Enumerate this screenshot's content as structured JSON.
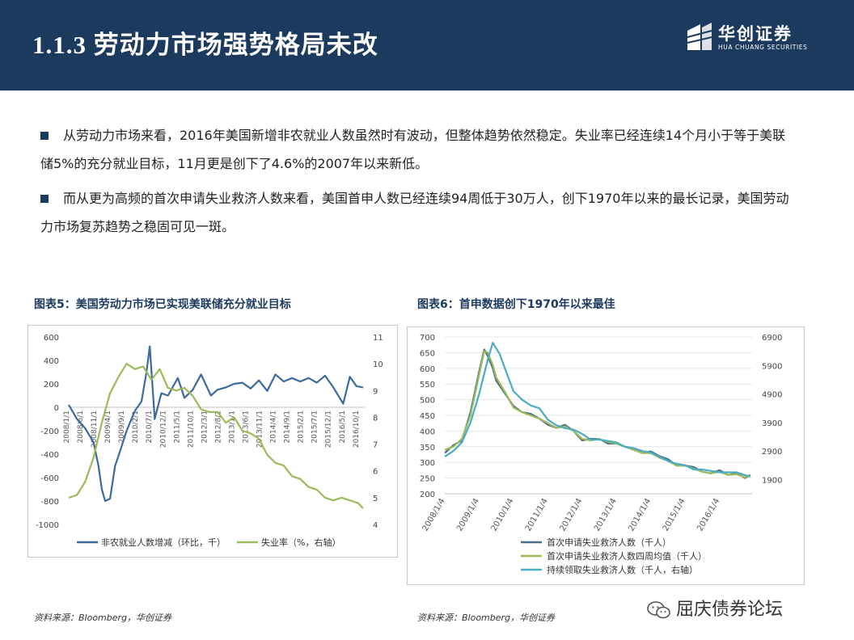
{
  "header": {
    "title": "1.1.3 劳动力市场强势格局未改",
    "logo_cn": "华创证券",
    "logo_en": "HUA CHUANG SECURITIES",
    "bg_color": "#1c3a5e"
  },
  "bullets": [
    "从劳动力市场来看，2016年美国新增非农就业人数虽然时有波动，但整体趋势依然稳定。失业率已经连续14个月小于等于美联储5%的充分就业目标，11月更是创下了4.6%的2007年以来新低。",
    "而从更为高频的首次申请失业救济人数来看，美国首申人数已经连续94周低于30万人，创下1970年以来的最长记录，美国劳动力市场复苏趋势之稳固可见一斑。"
  ],
  "chart_data": [
    {
      "type": "line",
      "title": "图表5：美国劳动力市场已实现美联储充分就业目标",
      "x_tick_labels": [
        "2008/1/1",
        "2008/11/1",
        "2009/9/1",
        "2010/7/1",
        "2011/5/1",
        "2012/3/1",
        "2013/1/1",
        "2013/11/1",
        "2014/9/1",
        "2015/7/1",
        "2016/5/1"
      ],
      "x_tick_labels_extra": [
        "2008/6/1",
        "2009/4/1",
        "2010/2/1",
        "2010/12/1",
        "2011/10/1",
        "2012/8/1",
        "2013/6/1",
        "2014/4/1",
        "2015/2/1",
        "2015/12/1",
        "2016/10/1"
      ],
      "y_left": {
        "ticks": [
          600,
          400,
          200,
          0,
          -200,
          -400,
          -600,
          -800,
          -1000
        ],
        "range": [
          -1000,
          600
        ]
      },
      "y_right": {
        "ticks": [
          11,
          10,
          9,
          8,
          7,
          6,
          5,
          4
        ],
        "range": [
          4,
          11
        ]
      },
      "series": [
        {
          "name": "非农就业人数增减（环比，千）",
          "axis": "left",
          "color": "#3d6a9e",
          "x_year": [
            2008.0,
            2008.25,
            2008.5,
            2008.75,
            2008.9,
            2009.0,
            2009.1,
            2009.25,
            2009.4,
            2009.5,
            2009.75,
            2010.0,
            2010.2,
            2010.35,
            2010.45,
            2010.6,
            2010.8,
            2011.0,
            2011.3,
            2011.5,
            2011.75,
            2012.0,
            2012.3,
            2012.5,
            2012.75,
            2013.0,
            2013.25,
            2013.5,
            2013.75,
            2014.0,
            2014.25,
            2014.5,
            2014.75,
            2015.0,
            2015.25,
            2015.5,
            2015.75,
            2016.0,
            2016.3,
            2016.5,
            2016.7,
            2016.9
          ],
          "values": [
            20,
            -100,
            -180,
            -300,
            -500,
            -700,
            -800,
            -780,
            -500,
            -420,
            -200,
            -30,
            50,
            300,
            520,
            -100,
            120,
            100,
            250,
            80,
            150,
            280,
            100,
            150,
            170,
            200,
            210,
            160,
            230,
            140,
            280,
            220,
            250,
            220,
            250,
            210,
            270,
            170,
            30,
            260,
            180,
            170
          ]
        },
        {
          "name": "失业率（%，右轴）",
          "axis": "right",
          "color": "#9bbb59",
          "x_year": [
            2008.0,
            2008.25,
            2008.5,
            2008.75,
            2009.0,
            2009.25,
            2009.5,
            2009.75,
            2010.0,
            2010.25,
            2010.5,
            2010.75,
            2011.0,
            2011.25,
            2011.5,
            2011.75,
            2012.0,
            2012.25,
            2012.5,
            2012.75,
            2013.0,
            2013.25,
            2013.5,
            2013.75,
            2014.0,
            2014.25,
            2014.5,
            2014.75,
            2015.0,
            2015.25,
            2015.5,
            2015.75,
            2016.0,
            2016.25,
            2016.5,
            2016.75,
            2016.9
          ],
          "values": [
            5.0,
            5.1,
            5.6,
            6.5,
            7.8,
            8.9,
            9.5,
            10.0,
            9.8,
            9.9,
            9.4,
            9.8,
            9.1,
            9.0,
            9.1,
            8.8,
            8.3,
            8.2,
            8.2,
            7.8,
            8.0,
            7.5,
            7.4,
            7.2,
            6.6,
            6.3,
            6.2,
            5.8,
            5.7,
            5.4,
            5.3,
            5.0,
            4.9,
            5.0,
            4.9,
            4.8,
            4.6
          ]
        }
      ],
      "legend": [
        "非农就业人数增减（环比，千）",
        "失业率（%，右轴）"
      ]
    },
    {
      "type": "line",
      "title": "图表6：首申数据创下1970年以来最佳",
      "x_tick_labels": [
        "2008/1/4",
        "2009/1/4",
        "2010/1/4",
        "2011/1/4",
        "2012/1/4",
        "2013/1/4",
        "2014/1/4",
        "2015/1/4",
        "2016/1/4"
      ],
      "y_left": {
        "ticks": [
          700,
          650,
          600,
          550,
          500,
          450,
          400,
          350,
          300,
          250,
          200
        ],
        "range": [
          200,
          700
        ]
      },
      "y_right": {
        "ticks": [
          6900,
          5900,
          4900,
          3900,
          2900,
          1900
        ],
        "range": [
          1400,
          6900
        ]
      },
      "series": [
        {
          "name": "首次申请失业救济人数（千人）",
          "axis": "left",
          "color": "#4a6c8c",
          "x_year": [
            2008.0,
            2008.25,
            2008.5,
            2008.75,
            2009.0,
            2009.15,
            2009.25,
            2009.4,
            2009.5,
            2009.75,
            2010.0,
            2010.25,
            2010.5,
            2010.75,
            2011.0,
            2011.25,
            2011.5,
            2011.75,
            2012.0,
            2012.25,
            2012.5,
            2012.75,
            2013.0,
            2013.25,
            2013.5,
            2013.75,
            2014.0,
            2014.25,
            2014.5,
            2014.75,
            2015.0,
            2015.25,
            2015.5,
            2015.75,
            2016.0,
            2016.25,
            2016.5,
            2016.75,
            2016.9
          ],
          "values": [
            330,
            355,
            370,
            460,
            590,
            660,
            640,
            600,
            560,
            520,
            480,
            460,
            455,
            440,
            420,
            410,
            420,
            400,
            370,
            375,
            375,
            360,
            360,
            350,
            345,
            330,
            335,
            320,
            310,
            290,
            290,
            285,
            270,
            265,
            275,
            260,
            265,
            250,
            260
          ]
        },
        {
          "name": "首次申请失业救济人数四周均值（千人）",
          "axis": "left",
          "color": "#9bbb59",
          "x_year": [
            2008.0,
            2008.25,
            2008.5,
            2008.75,
            2009.0,
            2009.15,
            2009.25,
            2009.4,
            2009.5,
            2009.75,
            2010.0,
            2010.25,
            2010.5,
            2010.75,
            2011.0,
            2011.25,
            2011.5,
            2011.75,
            2012.0,
            2012.25,
            2012.5,
            2012.75,
            2013.0,
            2013.25,
            2013.5,
            2013.75,
            2014.0,
            2014.25,
            2014.5,
            2014.75,
            2015.0,
            2015.25,
            2015.5,
            2015.75,
            2016.0,
            2016.25,
            2016.5,
            2016.75,
            2016.9
          ],
          "values": [
            340,
            350,
            375,
            450,
            580,
            655,
            650,
            610,
            570,
            525,
            475,
            460,
            450,
            440,
            425,
            410,
            415,
            400,
            375,
            370,
            375,
            365,
            360,
            350,
            340,
            330,
            330,
            315,
            305,
            290,
            290,
            280,
            270,
            265,
            270,
            260,
            262,
            252,
            258
          ]
        },
        {
          "name": "持续领取失业救济人数（千人，右轴）",
          "axis": "right",
          "color": "#4bacc6",
          "x_year": [
            2008.0,
            2008.25,
            2008.5,
            2008.75,
            2009.0,
            2009.25,
            2009.4,
            2009.6,
            2009.75,
            2010.0,
            2010.25,
            2010.5,
            2010.75,
            2011.0,
            2011.25,
            2011.5,
            2011.75,
            2012.0,
            2012.25,
            2012.5,
            2012.75,
            2013.0,
            2013.25,
            2013.5,
            2013.75,
            2014.0,
            2014.25,
            2014.5,
            2014.75,
            2015.0,
            2015.25,
            2015.5,
            2015.75,
            2016.0,
            2016.25,
            2016.5,
            2016.75,
            2016.9
          ],
          "values": [
            2700,
            2900,
            3200,
            3900,
            4900,
            6100,
            6700,
            6300,
            5800,
            5000,
            4700,
            4500,
            4400,
            4000,
            3800,
            3700,
            3650,
            3500,
            3300,
            3300,
            3250,
            3200,
            3050,
            3000,
            2900,
            2850,
            2700,
            2550,
            2450,
            2400,
            2250,
            2250,
            2200,
            2150,
            2150,
            2150,
            2050,
            2000
          ]
        }
      ],
      "legend": [
        "首次申请失业救济人数（千人）",
        "首次申请失业救济人数四周均值（千人）",
        "持续领取失业救济人数（千人，右轴）"
      ]
    }
  ],
  "sources": [
    "资料来源：Bloomberg，华创证券",
    "资料来源：Bloomberg，华创证券"
  ],
  "watermark": "屈庆债券论坛"
}
